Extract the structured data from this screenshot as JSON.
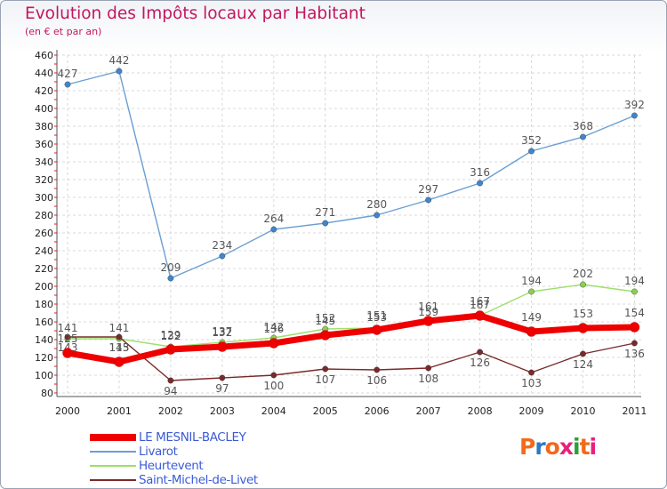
{
  "title": "Evolution des Impôts locaux par Habitant",
  "subtitle": "(en € et par an)",
  "logo": {
    "text": "Proxiti",
    "colors": [
      "#f26a1b",
      "#2b78c5",
      "#f26a1b",
      "#e8207c",
      "#2b9f3a",
      "#f26a1b",
      "#e8207c"
    ]
  },
  "chart_data": {
    "type": "line",
    "categories": [
      "2000",
      "2001",
      "2002",
      "2003",
      "2004",
      "2005",
      "2006",
      "2007",
      "2008",
      "2009",
      "2010",
      "2011"
    ],
    "ylim": [
      80,
      460
    ],
    "yticks": [
      80,
      100,
      120,
      140,
      160,
      180,
      200,
      220,
      240,
      260,
      280,
      300,
      320,
      340,
      360,
      380,
      400,
      420,
      440,
      460
    ],
    "grid": true,
    "series": [
      {
        "name": "Livarot",
        "color": "#6b9fd2",
        "marker": "#3f86cc",
        "values": [
          427,
          442,
          209,
          234,
          264,
          271,
          280,
          297,
          316,
          352,
          368,
          392
        ]
      },
      {
        "name": "Heurtevent",
        "color": "#9be06b",
        "marker": "#8bd04f",
        "values": [
          141,
          141,
          132,
          137,
          142,
          152,
          153,
          159,
          167,
          194,
          202,
          194
        ]
      },
      {
        "name": "Saint-Michel-de-Livet",
        "color": "#7a2a2a",
        "marker": "#7a2a2a",
        "values": [
          143,
          143,
          94,
          97,
          100,
          107,
          106,
          108,
          126,
          103,
          124,
          136
        ]
      },
      {
        "name": "LE MESNIL-BACLEY",
        "color": "#ee0000",
        "marker": "#ee0000",
        "values": [
          125,
          115,
          129,
          132,
          136,
          145,
          151,
          161,
          167,
          149,
          153,
          154
        ]
      }
    ]
  },
  "legend": [
    {
      "label": "LE MESNIL-BACLEY",
      "color": "#ee0000",
      "thickness": 8
    },
    {
      "label": "Livarot",
      "color": "#6b9fd2",
      "thickness": 2
    },
    {
      "label": "Heurtevent",
      "color": "#9be06b",
      "thickness": 2
    },
    {
      "label": "Saint-Michel-de-Livet",
      "color": "#7a2a2a",
      "thickness": 2
    }
  ]
}
